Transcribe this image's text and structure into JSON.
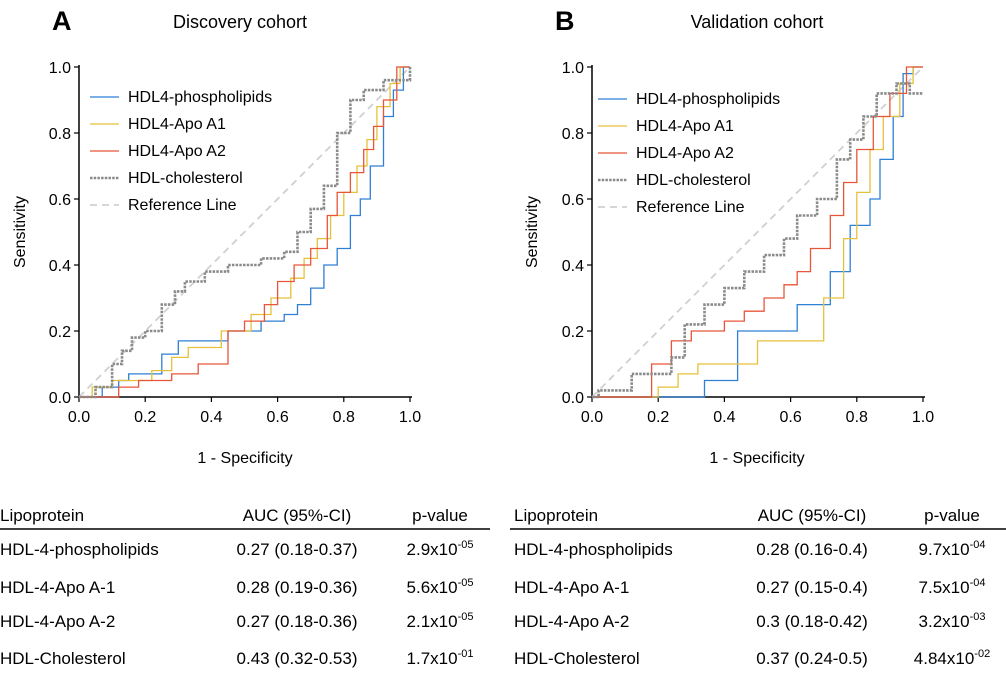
{
  "chart_data": [
    {
      "type": "line",
      "panel_letter": "A",
      "title": "Discovery cohort",
      "xlabel": "1 - Specificity",
      "ylabel": "Sensitivity",
      "xlim": [
        0,
        1
      ],
      "ylim": [
        0,
        1
      ],
      "xticks": [
        "0.0",
        "0.2",
        "0.4",
        "0.6",
        "0.8",
        "1.0"
      ],
      "yticks": [
        "0.0",
        "0.2",
        "0.4",
        "0.6",
        "0.8",
        "1.0"
      ],
      "grid": false,
      "legend_position": "top-left",
      "series": [
        {
          "name": "HDL4-phospholipids",
          "color": "#2e7fd6",
          "style": "solid",
          "x": [
            0,
            0.07,
            0.07,
            0.12,
            0.12,
            0.15,
            0.15,
            0.25,
            0.25,
            0.3,
            0.3,
            0.45,
            0.45,
            0.55,
            0.55,
            0.62,
            0.62,
            0.66,
            0.66,
            0.7,
            0.7,
            0.74,
            0.74,
            0.78,
            0.78,
            0.82,
            0.82,
            0.85,
            0.85,
            0.88,
            0.88,
            0.92,
            0.92,
            0.95,
            0.95,
            0.98,
            0.98,
            1.0
          ],
          "y": [
            0,
            0,
            0.03,
            0.03,
            0.05,
            0.05,
            0.07,
            0.07,
            0.13,
            0.13,
            0.17,
            0.17,
            0.2,
            0.2,
            0.23,
            0.23,
            0.25,
            0.25,
            0.28,
            0.28,
            0.33,
            0.33,
            0.4,
            0.4,
            0.45,
            0.45,
            0.55,
            0.55,
            0.6,
            0.6,
            0.7,
            0.7,
            0.85,
            0.85,
            0.93,
            0.93,
            1.0,
            1.0
          ]
        },
        {
          "name": "HDL4-Apo A1",
          "color": "#e6c03a",
          "style": "solid",
          "x": [
            0,
            0.04,
            0.04,
            0.1,
            0.1,
            0.22,
            0.22,
            0.28,
            0.28,
            0.33,
            0.33,
            0.43,
            0.43,
            0.52,
            0.52,
            0.58,
            0.58,
            0.64,
            0.64,
            0.68,
            0.68,
            0.72,
            0.72,
            0.76,
            0.76,
            0.8,
            0.8,
            0.84,
            0.84,
            0.87,
            0.87,
            0.9,
            0.9,
            0.94,
            0.94,
            0.97,
            0.97,
            1.0
          ],
          "y": [
            0,
            0,
            0.03,
            0.03,
            0.05,
            0.05,
            0.08,
            0.08,
            0.12,
            0.12,
            0.15,
            0.15,
            0.2,
            0.2,
            0.25,
            0.25,
            0.3,
            0.3,
            0.36,
            0.36,
            0.42,
            0.42,
            0.48,
            0.48,
            0.55,
            0.55,
            0.62,
            0.62,
            0.7,
            0.7,
            0.78,
            0.78,
            0.88,
            0.88,
            0.95,
            0.95,
            1.0,
            1.0
          ]
        },
        {
          "name": "HDL4-Apo A2",
          "color": "#e8553a",
          "style": "solid",
          "x": [
            0,
            0.12,
            0.12,
            0.18,
            0.18,
            0.28,
            0.28,
            0.36,
            0.36,
            0.45,
            0.45,
            0.5,
            0.5,
            0.56,
            0.56,
            0.6,
            0.6,
            0.65,
            0.65,
            0.7,
            0.7,
            0.75,
            0.75,
            0.78,
            0.78,
            0.82,
            0.82,
            0.86,
            0.86,
            0.89,
            0.89,
            0.92,
            0.92,
            0.96,
            0.96,
            1.0
          ],
          "y": [
            0,
            0,
            0.03,
            0.03,
            0.05,
            0.05,
            0.07,
            0.07,
            0.1,
            0.1,
            0.2,
            0.2,
            0.23,
            0.23,
            0.28,
            0.28,
            0.35,
            0.35,
            0.4,
            0.4,
            0.45,
            0.45,
            0.55,
            0.55,
            0.62,
            0.62,
            0.68,
            0.68,
            0.75,
            0.75,
            0.82,
            0.82,
            0.9,
            0.9,
            1.0,
            1.0
          ]
        },
        {
          "name": "HDL-cholesterol",
          "color": "#8a8a8a",
          "style": "dashed",
          "x": [
            0,
            0.05,
            0.05,
            0.1,
            0.1,
            0.13,
            0.13,
            0.16,
            0.16,
            0.2,
            0.2,
            0.25,
            0.25,
            0.29,
            0.29,
            0.32,
            0.32,
            0.38,
            0.38,
            0.45,
            0.45,
            0.55,
            0.55,
            0.62,
            0.62,
            0.66,
            0.66,
            0.7,
            0.7,
            0.74,
            0.74,
            0.78,
            0.78,
            0.82,
            0.82,
            0.86,
            0.86,
            0.92,
            0.92,
            0.95,
            0.95,
            1.0,
            1.0
          ],
          "y": [
            0,
            0,
            0.03,
            0.03,
            0.1,
            0.1,
            0.14,
            0.14,
            0.18,
            0.18,
            0.2,
            0.2,
            0.28,
            0.28,
            0.32,
            0.32,
            0.35,
            0.35,
            0.38,
            0.38,
            0.4,
            0.4,
            0.42,
            0.42,
            0.44,
            0.44,
            0.5,
            0.5,
            0.57,
            0.57,
            0.64,
            0.64,
            0.8,
            0.8,
            0.9,
            0.9,
            0.93,
            0.93,
            0.96,
            0.96,
            0.96,
            0.96,
            1.0
          ]
        },
        {
          "name": "Reference Line",
          "color": "#d0d0d0",
          "style": "dashed",
          "x": [
            0,
            1
          ],
          "y": [
            0,
            1
          ]
        }
      ]
    },
    {
      "type": "line",
      "panel_letter": "B",
      "title": "Validation cohort",
      "xlabel": "1 - Specificity",
      "ylabel": "Sensitivity",
      "xlim": [
        0,
        1
      ],
      "ylim": [
        0,
        1
      ],
      "xticks": [
        "0.0",
        "0.2",
        "0.4",
        "0.6",
        "0.8",
        "1.0"
      ],
      "yticks": [
        "0.0",
        "0.2",
        "0.4",
        "0.6",
        "0.8",
        "1.0"
      ],
      "grid": false,
      "legend_position": "top-left",
      "series": [
        {
          "name": "HDL4-phospholipids",
          "color": "#2e7fd6",
          "style": "solid",
          "x": [
            0,
            0.34,
            0.34,
            0.44,
            0.44,
            0.62,
            0.62,
            0.72,
            0.72,
            0.78,
            0.78,
            0.84,
            0.84,
            0.87,
            0.87,
            0.91,
            0.91,
            0.94,
            0.94,
            0.97,
            0.97,
            1.0
          ],
          "y": [
            0,
            0,
            0.05,
            0.05,
            0.2,
            0.2,
            0.28,
            0.28,
            0.38,
            0.38,
            0.52,
            0.52,
            0.6,
            0.6,
            0.72,
            0.72,
            0.85,
            0.85,
            0.98,
            0.98,
            1.0,
            1.0
          ]
        },
        {
          "name": "HDL4-Apo A1",
          "color": "#e6c03a",
          "style": "solid",
          "x": [
            0,
            0.2,
            0.2,
            0.26,
            0.26,
            0.32,
            0.32,
            0.5,
            0.5,
            0.7,
            0.7,
            0.76,
            0.76,
            0.8,
            0.8,
            0.84,
            0.84,
            0.88,
            0.88,
            0.93,
            0.93,
            0.97,
            0.97,
            1.0
          ],
          "y": [
            0,
            0,
            0.03,
            0.03,
            0.07,
            0.07,
            0.1,
            0.1,
            0.17,
            0.17,
            0.3,
            0.3,
            0.48,
            0.48,
            0.62,
            0.62,
            0.75,
            0.75,
            0.85,
            0.85,
            0.95,
            0.95,
            1.0,
            1.0
          ]
        },
        {
          "name": "HDL4-Apo A2",
          "color": "#e8553a",
          "style": "solid",
          "x": [
            0,
            0.18,
            0.18,
            0.24,
            0.24,
            0.3,
            0.3,
            0.4,
            0.4,
            0.46,
            0.46,
            0.52,
            0.52,
            0.58,
            0.58,
            0.62,
            0.62,
            0.66,
            0.66,
            0.72,
            0.72,
            0.76,
            0.76,
            0.8,
            0.8,
            0.85,
            0.85,
            0.9,
            0.9,
            0.95,
            0.95,
            1.0
          ],
          "y": [
            0,
            0,
            0.1,
            0.1,
            0.17,
            0.17,
            0.2,
            0.2,
            0.23,
            0.23,
            0.26,
            0.26,
            0.3,
            0.3,
            0.34,
            0.34,
            0.38,
            0.38,
            0.45,
            0.45,
            0.55,
            0.55,
            0.65,
            0.65,
            0.75,
            0.75,
            0.85,
            0.85,
            0.92,
            0.92,
            1.0,
            1.0
          ]
        },
        {
          "name": "HDL-cholesterol",
          "color": "#8a8a8a",
          "style": "dashed",
          "x": [
            0,
            0.02,
            0.02,
            0.12,
            0.12,
            0.24,
            0.24,
            0.28,
            0.28,
            0.34,
            0.34,
            0.4,
            0.4,
            0.46,
            0.46,
            0.52,
            0.52,
            0.58,
            0.58,
            0.62,
            0.62,
            0.68,
            0.68,
            0.74,
            0.74,
            0.78,
            0.78,
            0.82,
            0.82,
            0.86,
            0.86,
            0.92,
            0.92,
            0.96,
            0.96,
            1.0
          ],
          "y": [
            0,
            0,
            0.02,
            0.02,
            0.07,
            0.07,
            0.12,
            0.12,
            0.22,
            0.22,
            0.28,
            0.28,
            0.33,
            0.33,
            0.38,
            0.38,
            0.43,
            0.43,
            0.48,
            0.48,
            0.55,
            0.55,
            0.6,
            0.6,
            0.72,
            0.72,
            0.78,
            0.78,
            0.85,
            0.85,
            0.92,
            0.92,
            0.95,
            0.95,
            0.92,
            0.92
          ]
        },
        {
          "name": "Reference Line",
          "color": "#d0d0d0",
          "style": "dashed",
          "x": [
            0,
            1
          ],
          "y": [
            0,
            1
          ]
        }
      ]
    },
    {
      "type": "table",
      "columns": [
        "Lipoprotein",
        "AUC (95%-CI)",
        "p-value"
      ],
      "rows": [
        [
          "HDL-4-phospholipids",
          "0.27 (0.18-0.37)",
          {
            "base": "2.9x10",
            "exp": "-05"
          }
        ],
        [
          "HDL-4-Apo A-1",
          "0.28 (0.19-0.36)",
          {
            "base": "5.6x10",
            "exp": "-05"
          }
        ],
        [
          "HDL-4-Apo A-2",
          "0.27 (0.18-0.36)",
          {
            "base": "2.1x10",
            "exp": "-05"
          }
        ],
        [
          "HDL-Cholesterol",
          "0.43 (0.32-0.53)",
          {
            "base": "1.7x10",
            "exp": "-01"
          }
        ]
      ]
    },
    {
      "type": "table",
      "columns": [
        "Lipoprotein",
        "AUC (95%-CI)",
        "p-value"
      ],
      "rows": [
        [
          "HDL-4-phospholipids",
          "0.28 (0.16-0.4)",
          {
            "base": "9.7x10",
            "exp": "-04"
          }
        ],
        [
          "HDL-4-Apo A-1",
          "0.27 (0.15-0.4)",
          {
            "base": "7.5x10",
            "exp": "-04"
          }
        ],
        [
          "HDL-4-Apo A-2",
          "0.3 (0.18-0.42)",
          {
            "base": "3.2x10",
            "exp": "-03"
          }
        ],
        [
          "HDL-Cholesterol",
          "0.37 (0.24-0.5)",
          {
            "base": "4.84x10",
            "exp": "-02"
          }
        ]
      ]
    }
  ]
}
